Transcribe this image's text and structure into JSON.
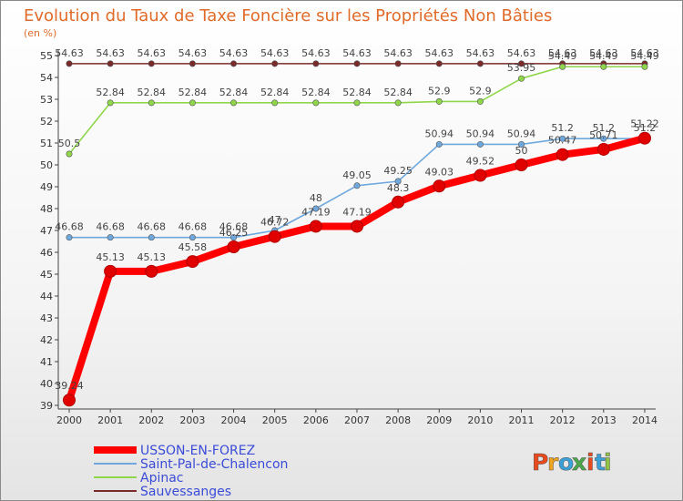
{
  "chart_data": {
    "type": "line",
    "title": "Evolution du Taux de Taxe Foncière sur les Propriétés Non Bâties",
    "ylabel": "(en %)",
    "xlabel": "",
    "ylim": [
      39,
      55
    ],
    "yticks": [
      39,
      40,
      41,
      42,
      43,
      44,
      45,
      46,
      47,
      48,
      49,
      50,
      51,
      52,
      53,
      54,
      55
    ],
    "categories": [
      "2000",
      "2001",
      "2002",
      "2003",
      "2004",
      "2005",
      "2006",
      "2007",
      "2008",
      "2009",
      "2010",
      "2011",
      "2012",
      "2013",
      "2014"
    ],
    "grid": false,
    "legend_position": "bottom-left",
    "series": [
      {
        "name": "USSON-EN-FOREZ",
        "color": "#ff0000",
        "values": [
          39.24,
          45.13,
          45.13,
          45.58,
          46.25,
          46.72,
          47.19,
          47.19,
          48.3,
          49.03,
          49.52,
          50.0,
          50.47,
          50.71,
          51.22
        ],
        "labels": [
          "39.24",
          "45.13",
          "45.13",
          "45.58",
          "46.25",
          "46.72",
          "47.19",
          "47.19",
          "48.3",
          "49.03",
          "49.52",
          "50",
          "50.47",
          "50.71",
          "51.22"
        ]
      },
      {
        "name": "Saint-Pal-de-Chalencon",
        "color": "#6fa8dc",
        "values": [
          46.68,
          46.68,
          46.68,
          46.68,
          46.68,
          47.0,
          48.0,
          49.05,
          49.25,
          50.94,
          50.94,
          50.94,
          51.2,
          51.2,
          51.2
        ],
        "labels": [
          "46.68",
          "46.68",
          "46.68",
          "46.68",
          "46.68",
          "47",
          "48",
          "49.05",
          "49.25",
          "50.94",
          "50.94",
          "50.94",
          "51.2",
          "51.2",
          "51.2"
        ]
      },
      {
        "name": "Apinac",
        "color": "#8fd64a",
        "values": [
          50.5,
          52.84,
          52.84,
          52.84,
          52.84,
          52.84,
          52.84,
          52.84,
          52.84,
          52.9,
          52.9,
          53.95,
          54.49,
          54.49,
          54.49
        ],
        "labels": [
          "50.5",
          "52.84",
          "52.84",
          "52.84",
          "52.84",
          "52.84",
          "52.84",
          "52.84",
          "52.84",
          "52.9",
          "52.9",
          "53.95",
          "54.49",
          "54.49",
          "54.49"
        ]
      },
      {
        "name": "Sauvessanges",
        "color": "#7b2a2a",
        "values": [
          54.63,
          54.63,
          54.63,
          54.63,
          54.63,
          54.63,
          54.63,
          54.63,
          54.63,
          54.63,
          54.63,
          54.63,
          54.63,
          54.63,
          54.63
        ],
        "labels": [
          "54.63",
          "54.63",
          "54.63",
          "54.63",
          "54.63",
          "54.63",
          "54.63",
          "54.63",
          "54.63",
          "54.63",
          "54.63",
          "54.63",
          "54.63",
          "54.63",
          "54.63"
        ]
      }
    ]
  },
  "logo": {
    "text": "Proxiti",
    "colors": [
      "#e8491d",
      "#f0a31c",
      "#3aa0d8",
      "#4aa84a",
      "#e8491d",
      "#3aa0d8",
      "#8fc641"
    ]
  }
}
